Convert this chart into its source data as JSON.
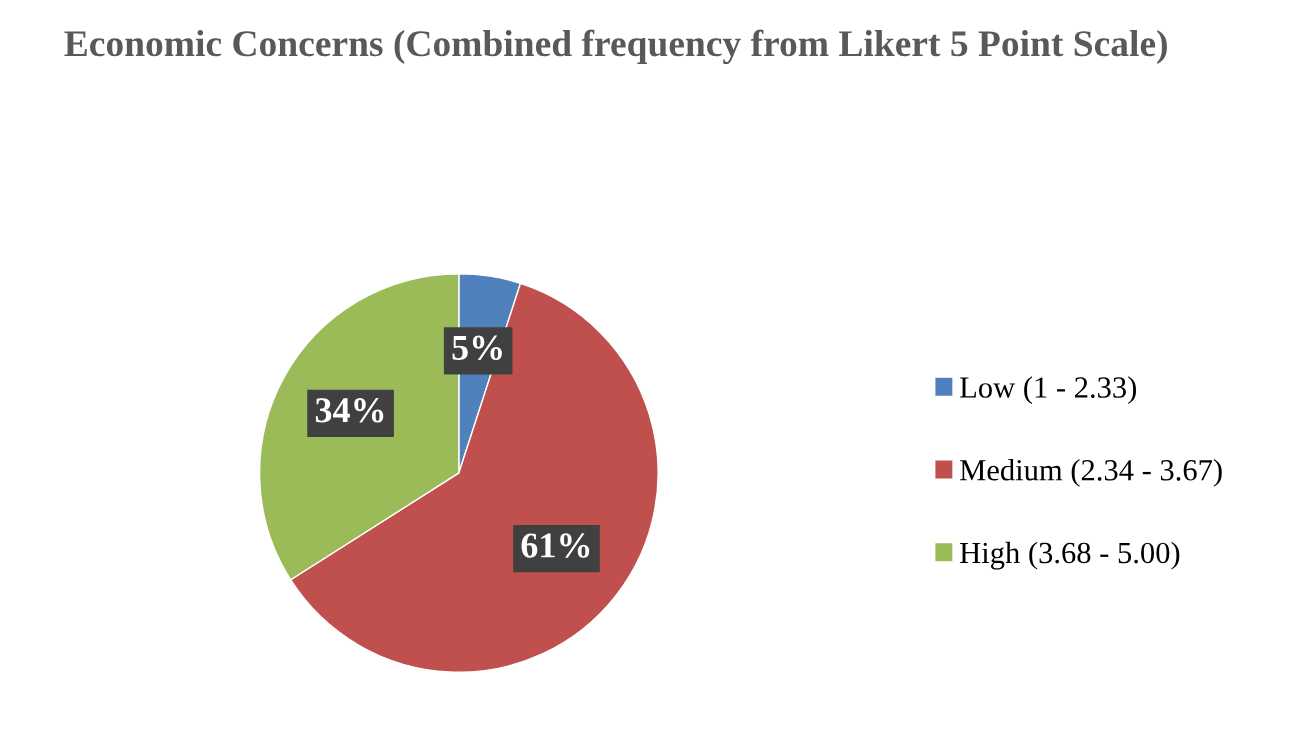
{
  "chart_data": {
    "type": "pie",
    "title": "Economic Concerns (Combined frequency from Likert 5 Point Scale)",
    "categories": [
      "Low (1 - 2.33)",
      "Medium (2.34 - 3.67)",
      "High (3.68 - 5.00)"
    ],
    "values": [
      5,
      61,
      34
    ],
    "colors": [
      "#4f81bd",
      "#c0504d",
      "#9bbb59"
    ],
    "value_labels": [
      "5%",
      "61%",
      "34%"
    ],
    "legend": "right"
  }
}
